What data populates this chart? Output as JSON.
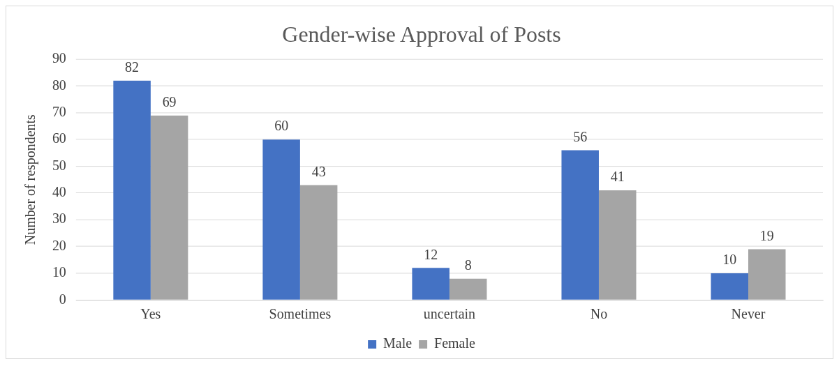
{
  "chart_data": {
    "type": "bar",
    "title": "Gender-wise Approval of Posts",
    "ylabel": "Number of respondents",
    "categories": [
      "Yes",
      "Sometimes",
      "uncertain",
      "No",
      "Never"
    ],
    "series": [
      {
        "name": "Male",
        "color": "#4472c4",
        "values": [
          82,
          60,
          12,
          56,
          10
        ]
      },
      {
        "name": "Female",
        "color": "#a5a5a5",
        "values": [
          69,
          43,
          8,
          41,
          19
        ]
      }
    ],
    "ylim": [
      0,
      90
    ],
    "yticks": [
      0,
      10,
      20,
      30,
      40,
      50,
      60,
      70,
      80,
      90
    ],
    "grid": "y",
    "legend": "bottom",
    "data_labels": true
  }
}
